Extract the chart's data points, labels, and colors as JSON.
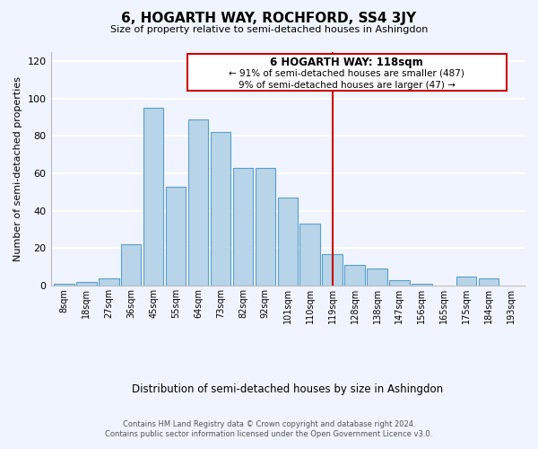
{
  "title": "6, HOGARTH WAY, ROCHFORD, SS4 3JY",
  "subtitle": "Size of property relative to semi-detached houses in Ashingdon",
  "xlabel": "Distribution of semi-detached houses by size in Ashingdon",
  "ylabel": "Number of semi-detached properties",
  "categories": [
    "8sqm",
    "18sqm",
    "27sqm",
    "36sqm",
    "45sqm",
    "55sqm",
    "64sqm",
    "73sqm",
    "82sqm",
    "92sqm",
    "101sqm",
    "110sqm",
    "119sqm",
    "128sqm",
    "138sqm",
    "147sqm",
    "156sqm",
    "165sqm",
    "175sqm",
    "184sqm",
    "193sqm"
  ],
  "values": [
    1,
    2,
    4,
    22,
    95,
    53,
    89,
    82,
    63,
    63,
    47,
    33,
    17,
    11,
    9,
    3,
    1,
    0,
    5,
    4,
    0
  ],
  "bar_color": "#b8d4e8",
  "bar_edge_color": "#5a9fc8",
  "highlight_line_idx": 12,
  "highlight_line_color": "#cc0000",
  "annotation_title": "6 HOGARTH WAY: 118sqm",
  "annotation_line1": "← 91% of semi-detached houses are smaller (487)",
  "annotation_line2": "9% of semi-detached houses are larger (47) →",
  "annotation_box_color": "#ffffff",
  "annotation_box_edge": "#cc0000",
  "footer_line1": "Contains HM Land Registry data © Crown copyright and database right 2024.",
  "footer_line2": "Contains public sector information licensed under the Open Government Licence v3.0.",
  "ylim": [
    0,
    125
  ],
  "yticks": [
    0,
    20,
    40,
    60,
    80,
    100,
    120
  ],
  "bg_color": "#f0f4ff",
  "grid_color": "#ffffff"
}
